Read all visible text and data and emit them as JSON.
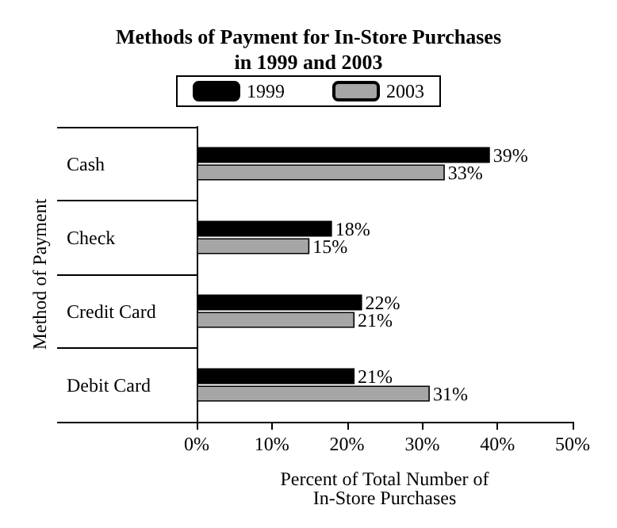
{
  "chart_data": {
    "type": "bar",
    "orientation": "horizontal",
    "title": "Methods of Payment for In-Store Purchases\nin 1999 and 2003",
    "xlabel": "Percent of Total Number of\nIn-Store Purchases",
    "ylabel": "Method of Payment",
    "categories": [
      "Cash",
      "Check",
      "Credit Card",
      "Debit Card"
    ],
    "series": [
      {
        "name": "1999",
        "color": "#000000",
        "values": [
          39,
          18,
          22,
          21
        ],
        "value_labels": [
          "39%",
          "18%",
          "22%",
          "21%"
        ]
      },
      {
        "name": "2003",
        "color": "#a6a6a6",
        "values": [
          33,
          15,
          21,
          31
        ],
        "value_labels": [
          "33%",
          "15%",
          "21%",
          "31%"
        ]
      }
    ],
    "xlim": [
      0,
      50
    ],
    "xticks": [
      {
        "value": 0,
        "label": "0%"
      },
      {
        "value": 10,
        "label": "10%"
      },
      {
        "value": 20,
        "label": "20%"
      },
      {
        "value": 30,
        "label": "30%"
      },
      {
        "value": 40,
        "label": "40%"
      },
      {
        "value": 50,
        "label": "50%"
      }
    ],
    "legend": "top",
    "grid": false
  }
}
